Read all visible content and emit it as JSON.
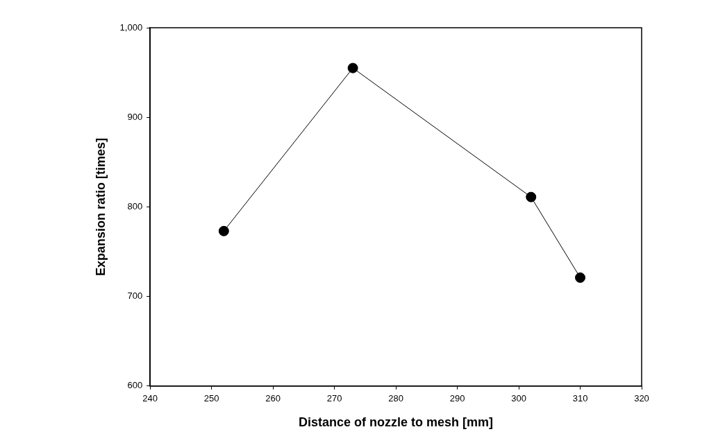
{
  "chart_data": {
    "type": "line",
    "x_label": "Distance of nozzle to mesh [mm]",
    "y_label": "Expansion ratio [times]",
    "x": [
      252,
      273,
      302,
      310
    ],
    "values": [
      773,
      955,
      811,
      721
    ],
    "color": "#000000",
    "marker": "circle",
    "line_style": "solid",
    "xlim": [
      240,
      320
    ],
    "xticks": [
      240,
      250,
      260,
      270,
      280,
      290,
      300,
      310,
      320
    ],
    "ylim": [
      600,
      1000
    ],
    "yticks": [
      600,
      700,
      800,
      900,
      1000
    ],
    "grid": false
  }
}
